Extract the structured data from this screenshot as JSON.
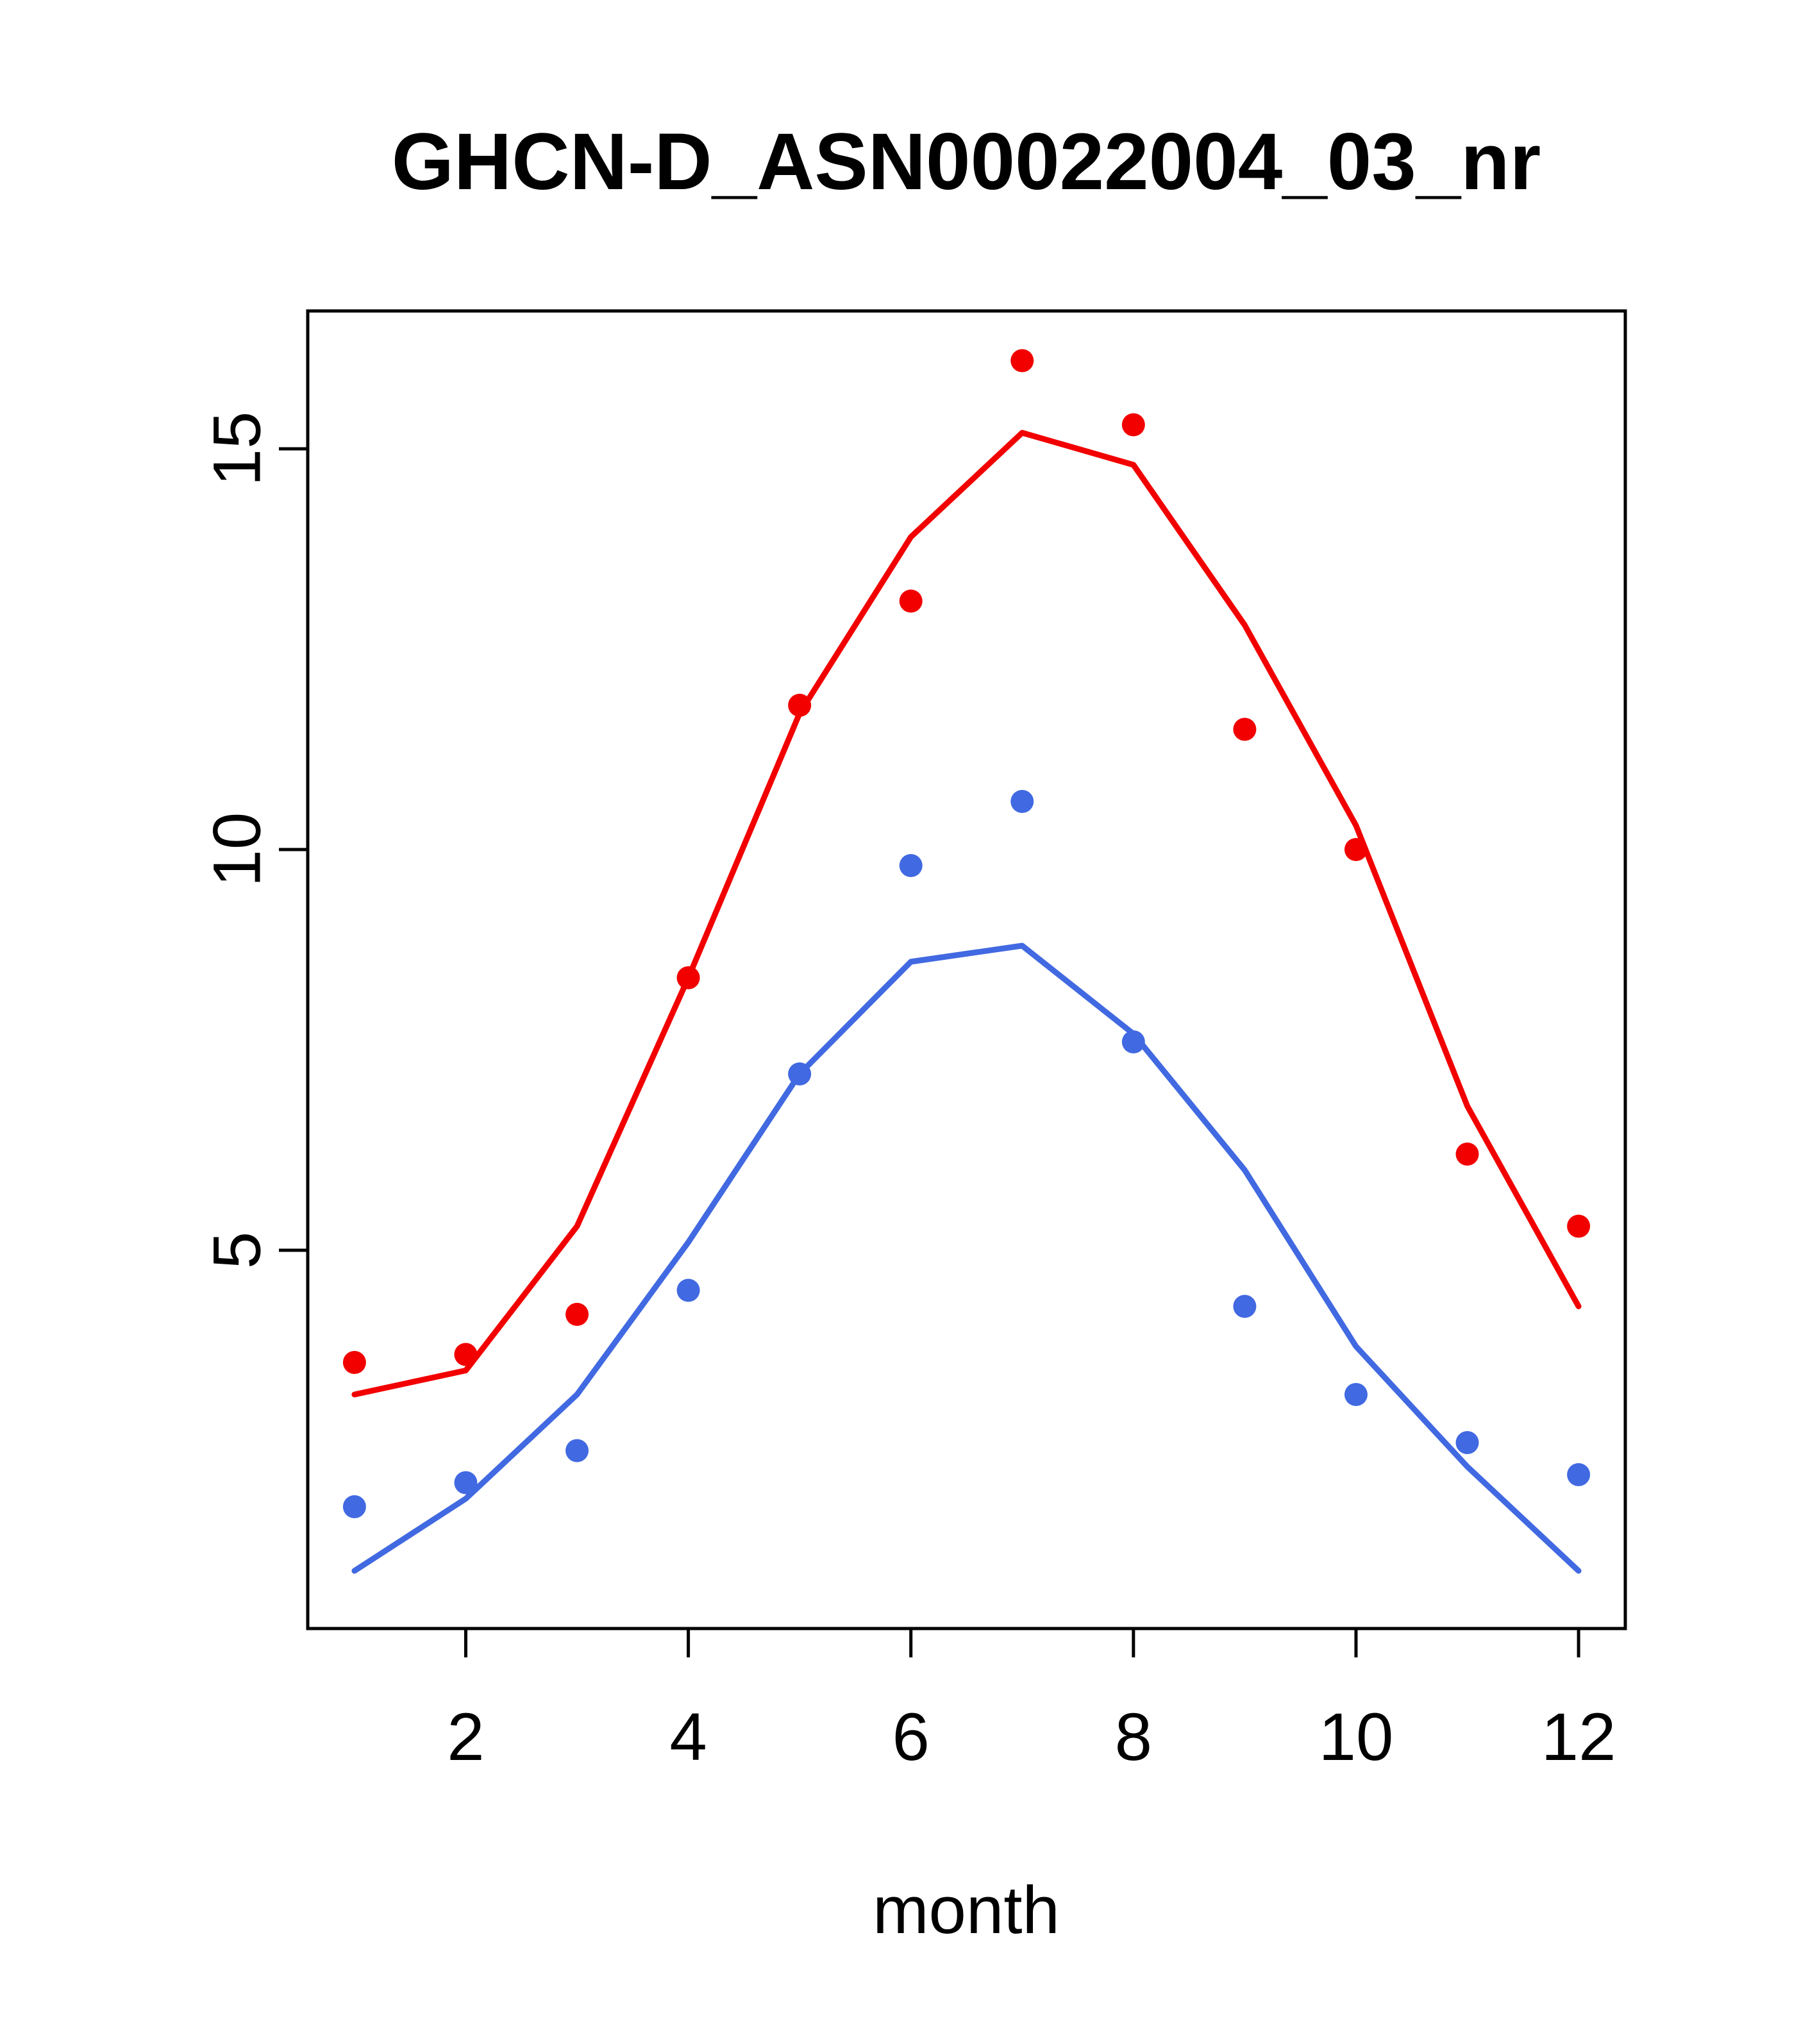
{
  "chart_data": {
    "type": "line",
    "title": "GHCN-D_ASN00022004_03_nr",
    "xlabel": "month",
    "ylabel": "",
    "x": [
      1,
      2,
      3,
      4,
      5,
      6,
      7,
      8,
      9,
      10,
      11,
      12
    ],
    "xticks": [
      2,
      4,
      6,
      8,
      10,
      12
    ],
    "yticks": [
      5,
      10,
      15
    ],
    "xlim": [
      0.58,
      12.42
    ],
    "ylim": [
      0.28,
      16.72
    ],
    "grid": false,
    "legend": null,
    "series": [
      {
        "name": "red-line",
        "style": "line",
        "color": "#f20000",
        "values": [
          3.2,
          3.5,
          5.3,
          8.4,
          11.7,
          13.9,
          15.2,
          14.8,
          12.8,
          10.3,
          6.8,
          4.3
        ]
      },
      {
        "name": "blue-line",
        "style": "line",
        "color": "#4169e1",
        "values": [
          1.0,
          1.9,
          3.2,
          5.1,
          7.2,
          8.6,
          8.8,
          7.7,
          6.0,
          3.8,
          2.3,
          1.0
        ]
      },
      {
        "name": "red-points",
        "style": "points",
        "color": "#f20000",
        "values": [
          3.6,
          3.7,
          4.2,
          8.4,
          11.8,
          13.1,
          16.1,
          15.3,
          11.5,
          10.0,
          6.2,
          5.3
        ]
      },
      {
        "name": "blue-points",
        "style": "points",
        "color": "#4169e1",
        "values": [
          1.8,
          2.1,
          2.5,
          4.5,
          7.2,
          9.8,
          10.6,
          7.6,
          4.3,
          3.2,
          2.6,
          2.2
        ]
      }
    ],
    "axis_color": "#000000",
    "background_color": "#ffffff"
  }
}
